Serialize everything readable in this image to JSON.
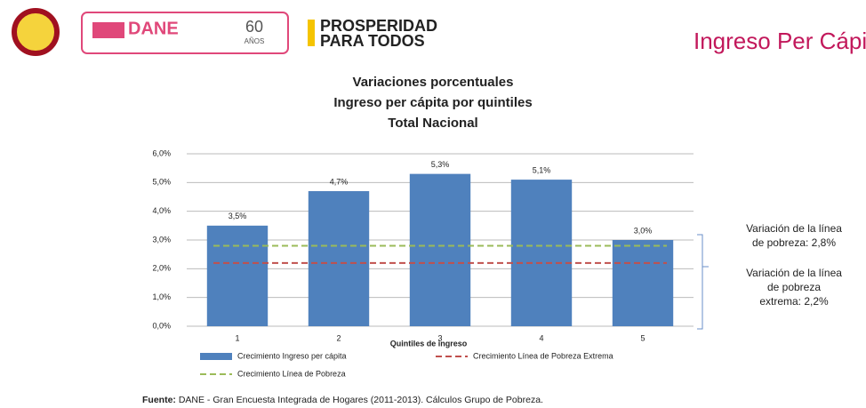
{
  "header": {
    "logo_dane": "DANE",
    "logo_years": "60",
    "logo_years_word": "AÑOS",
    "logo_prosperidad": [
      "PROSPERIDAD",
      "PARA TODOS"
    ],
    "slide_title": "Ingreso Per Cápita"
  },
  "chart_data": {
    "type": "bar",
    "title": [
      "Variaciones porcentuales",
      "Ingreso per cápita por quintiles",
      "Total Nacional"
    ],
    "x_label": "Quintiles de ingreso",
    "categories": [
      "1",
      "2",
      "3",
      "4",
      "5"
    ],
    "series": [
      {
        "name": "Crecimiento Ingreso per cápita",
        "color": "#4f81bd",
        "values": [
          3.5,
          4.7,
          5.3,
          5.1,
          3.0
        ],
        "value_labels": [
          "3,5%",
          "4,7%",
          "5,3%",
          "5,1%",
          "3,0%"
        ]
      }
    ],
    "reference_lines": [
      {
        "name": "Crecimiento Línea de Pobreza Extrema",
        "color": "#c0504d",
        "value": 2.2
      },
      {
        "name": "Crecimiento Línea de Pobreza",
        "color": "#9bbb59",
        "value": 2.8
      }
    ],
    "ylim": [
      0,
      6
    ],
    "yticks": [
      {
        "value": 0,
        "label": "0,0%"
      },
      {
        "value": 1,
        "label": "1,0%"
      },
      {
        "value": 2,
        "label": "2,0%"
      },
      {
        "value": 3,
        "label": "3,0%"
      },
      {
        "value": 4,
        "label": "4,0%"
      },
      {
        "value": 5,
        "label": "5,0%"
      },
      {
        "value": 6,
        "label": "6,0%"
      }
    ],
    "grid": true,
    "annotations": [
      [
        "Variación de la línea",
        "de pobreza: 2,8%"
      ],
      [
        "Variación de la línea",
        "de pobreza",
        "extrema: 2,2%"
      ]
    ]
  },
  "footer": {
    "label": "Fuente:",
    "text": "DANE - Gran Encuesta Integrada de Hogares (2011-2013). Cálculos Grupo de Pobreza."
  }
}
